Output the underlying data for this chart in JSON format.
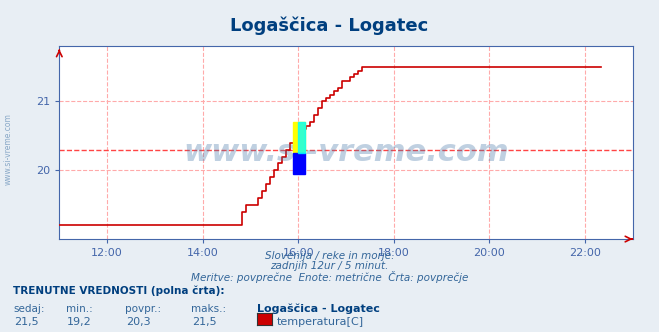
{
  "title": "Logaščica - Logatec",
  "title_color": "#003F7F",
  "bg_color": "#E8EEF4",
  "plot_bg_color": "#FFFFFF",
  "line_color": "#CC0000",
  "avg_line_color": "#FF4444",
  "avg_line_style": "dashed",
  "avg_value": 20.3,
  "y_min": 19.0,
  "y_max": 21.8,
  "x_min": 11.0,
  "x_max": 23.0,
  "x_ticks": [
    12,
    14,
    16,
    18,
    20,
    22
  ],
  "x_tick_labels": [
    "12:00",
    "14:00",
    "16:00",
    "18:00",
    "20:00",
    "22:00"
  ],
  "y_ticks": [
    20,
    21
  ],
  "grid_color": "#FFAAAA",
  "grid_style": "dashed",
  "watermark": "www.si-vreme.com",
  "watermark_color": "#4A7AAA",
  "watermark_alpha": 0.35,
  "side_label": "www.si-vreme.com",
  "subtitle1": "Slovenija / reke in morje.",
  "subtitle2": "zadnjih 12ur / 5 minut.",
  "subtitle3": "Meritve: povprečne  Enote: metrične  Črta: povprečje",
  "footer_header": "TRENUTNE VREDNOSTI (polna črta):",
  "footer_cols": [
    "sedaj:",
    "min.:",
    "povpr.:",
    "maks.:"
  ],
  "footer_vals": [
    "21,5",
    "19,2",
    "20,3",
    "21,5"
  ],
  "footer_series": "Logaščica - Logatec",
  "footer_unit": "temperatura[C]",
  "footer_swatch": "#CC0000",
  "arrow_color": "#CC0000",
  "axis_color": "#4466AA",
  "tick_color": "#4466AA",
  "font_color_blue": "#336699",
  "font_color_dark": "#003F7F",
  "data_x": [
    11.0,
    11.08,
    11.16,
    11.25,
    11.33,
    11.41,
    11.5,
    11.58,
    11.66,
    11.75,
    11.83,
    11.91,
    12.0,
    12.08,
    12.16,
    12.25,
    12.33,
    12.41,
    12.5,
    12.58,
    12.66,
    12.75,
    12.83,
    12.91,
    13.0,
    13.08,
    13.16,
    13.25,
    13.33,
    13.41,
    13.5,
    13.58,
    13.66,
    13.75,
    13.83,
    13.91,
    14.0,
    14.08,
    14.16,
    14.25,
    14.33,
    14.41,
    14.5,
    14.58,
    14.66,
    14.75,
    14.83,
    14.91,
    15.0,
    15.08,
    15.16,
    15.25,
    15.33,
    15.41,
    15.5,
    15.58,
    15.66,
    15.75,
    15.83,
    15.91,
    16.0,
    16.08,
    16.16,
    16.25,
    16.33,
    16.41,
    16.5,
    16.58,
    16.66,
    16.75,
    16.83,
    16.91,
    17.0,
    17.08,
    17.16,
    17.25,
    17.33,
    17.41,
    17.5,
    17.58,
    17.66,
    17.75,
    17.83,
    17.91,
    18.0,
    18.08,
    18.16,
    18.25,
    18.33,
    18.41,
    18.5,
    18.58,
    18.66,
    18.75,
    18.83,
    18.91,
    19.0,
    19.08,
    19.16,
    19.25,
    19.33,
    19.41,
    19.5,
    19.58,
    19.66,
    19.75,
    19.83,
    19.91,
    20.0,
    20.08,
    20.16,
    20.25,
    20.33,
    20.41,
    20.5,
    20.58,
    20.66,
    20.75,
    20.83,
    20.91,
    21.0,
    21.08,
    21.16,
    21.25,
    21.33,
    21.41,
    21.5,
    21.58,
    21.66,
    21.75,
    21.83,
    21.91,
    22.0,
    22.08,
    22.16,
    22.25,
    22.33
  ],
  "data_y": [
    19.2,
    19.2,
    19.2,
    19.2,
    19.2,
    19.2,
    19.2,
    19.2,
    19.2,
    19.2,
    19.2,
    19.2,
    19.2,
    19.2,
    19.2,
    19.2,
    19.2,
    19.2,
    19.2,
    19.2,
    19.2,
    19.2,
    19.2,
    19.2,
    19.2,
    19.2,
    19.2,
    19.2,
    19.2,
    19.2,
    19.2,
    19.2,
    19.2,
    19.2,
    19.2,
    19.2,
    19.2,
    19.2,
    19.2,
    19.2,
    19.2,
    19.2,
    19.2,
    19.2,
    19.2,
    19.2,
    19.4,
    19.5,
    19.5,
    19.5,
    19.6,
    19.7,
    19.8,
    19.9,
    20.0,
    20.1,
    20.2,
    20.3,
    20.4,
    20.5,
    20.55,
    20.6,
    20.65,
    20.7,
    20.8,
    20.9,
    21.0,
    21.05,
    21.1,
    21.15,
    21.2,
    21.3,
    21.3,
    21.35,
    21.4,
    21.45,
    21.5,
    21.5,
    21.5,
    21.5,
    21.5,
    21.5,
    21.5,
    21.5,
    21.5,
    21.5,
    21.5,
    21.5,
    21.5,
    21.5,
    21.5,
    21.5,
    21.5,
    21.5,
    21.5,
    21.5,
    21.5,
    21.5,
    21.5,
    21.5,
    21.5,
    21.5,
    21.5,
    21.5,
    21.5,
    21.5,
    21.5,
    21.5,
    21.5,
    21.5,
    21.5,
    21.5,
    21.5,
    21.5,
    21.5,
    21.5,
    21.5,
    21.5,
    21.5,
    21.5,
    21.5,
    21.5,
    21.5,
    21.5,
    21.5,
    21.5,
    21.5,
    21.5,
    21.5,
    21.5,
    21.5,
    21.5,
    21.5,
    21.5,
    21.5,
    21.5,
    21.5
  ]
}
